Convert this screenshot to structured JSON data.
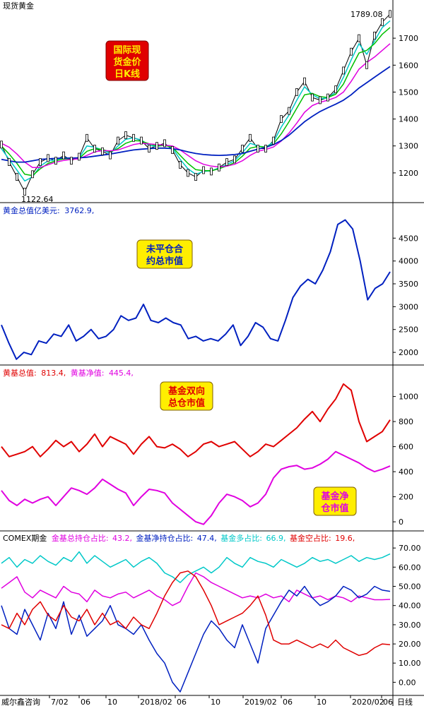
{
  "colors": {
    "background": "#ffffff",
    "axis": "#000000",
    "kline": "#000000",
    "ma1": "#00c8c8",
    "ma2": "#00c000",
    "ma3": "#e000e0",
    "ma4": "#0020c0",
    "open_interest": "#0020c0",
    "fund_gross": "#e00000",
    "fund_net": "#e000e0",
    "cyan": "#00c8c8",
    "label_red_box": "#e00000",
    "label_yellow_box": "#ffee00"
  },
  "chart_data": [
    {
      "type": "line",
      "panel": "spot-gold-kline",
      "title": "现货黄金",
      "note_box": [
        "国际现",
        "货金价",
        "日K线"
      ],
      "ylim": [
        1100,
        1800
      ],
      "y_ticks": [
        1200,
        1300,
        1400,
        1500,
        1600,
        1700
      ],
      "annotations": {
        "high": "1789.08",
        "low": "1122.64"
      },
      "series": [
        {
          "role": "price-close",
          "values": [
            1305,
            1240,
            1185,
            1130,
            1195,
            1240,
            1255,
            1245,
            1265,
            1245,
            1260,
            1330,
            1290,
            1280,
            1265,
            1320,
            1340,
            1330,
            1320,
            1290,
            1300,
            1310,
            1285,
            1230,
            1200,
            1185,
            1210,
            1205,
            1220,
            1240,
            1250,
            1290,
            1330,
            1290,
            1290,
            1320,
            1400,
            1430,
            1500,
            1540,
            1480,
            1470,
            1480,
            1510,
            1580,
            1650,
            1700,
            1600,
            1710,
            1760,
            1790
          ]
        },
        {
          "role": "ma-short",
          "values": [
            1290,
            1250,
            1210,
            1170,
            1185,
            1225,
            1245,
            1248,
            1258,
            1252,
            1256,
            1300,
            1295,
            1285,
            1272,
            1300,
            1325,
            1330,
            1322,
            1302,
            1298,
            1305,
            1292,
            1250,
            1215,
            1195,
            1205,
            1208,
            1218,
            1232,
            1245,
            1275,
            1310,
            1300,
            1295,
            1315,
            1370,
            1415,
            1470,
            1520,
            1490,
            1475,
            1478,
            1500,
            1555,
            1620,
            1680,
            1640,
            1690,
            1740,
            1765
          ]
        },
        {
          "role": "ma-mid",
          "values": [
            1300,
            1270,
            1235,
            1195,
            1190,
            1215,
            1235,
            1245,
            1252,
            1252,
            1254,
            1280,
            1290,
            1287,
            1278,
            1290,
            1310,
            1320,
            1318,
            1308,
            1300,
            1302,
            1295,
            1265,
            1235,
            1212,
            1208,
            1208,
            1215,
            1226,
            1238,
            1262,
            1292,
            1298,
            1296,
            1308,
            1345,
            1390,
            1440,
            1490,
            1495,
            1483,
            1480,
            1492,
            1530,
            1590,
            1645,
            1655,
            1680,
            1715,
            1740
          ]
        },
        {
          "role": "ma-long1",
          "values": [
            1310,
            1295,
            1270,
            1240,
            1220,
            1220,
            1230,
            1240,
            1246,
            1250,
            1252,
            1265,
            1278,
            1283,
            1282,
            1285,
            1295,
            1305,
            1310,
            1308,
            1305,
            1303,
            1300,
            1285,
            1265,
            1245,
            1232,
            1225,
            1222,
            1225,
            1232,
            1245,
            1265,
            1280,
            1287,
            1296,
            1318,
            1348,
            1385,
            1425,
            1450,
            1462,
            1470,
            1480,
            1500,
            1540,
            1585,
            1610,
            1630,
            1655,
            1680
          ]
        },
        {
          "role": "ma-long2",
          "values": [
            1250,
            1245,
            1240,
            1240,
            1245,
            1250,
            1252,
            1254,
            1255,
            1255,
            1256,
            1258,
            1262,
            1266,
            1270,
            1275,
            1280,
            1285,
            1288,
            1290,
            1292,
            1292,
            1290,
            1285,
            1278,
            1272,
            1268,
            1266,
            1265,
            1266,
            1268,
            1272,
            1280,
            1288,
            1295,
            1305,
            1320,
            1340,
            1365,
            1390,
            1410,
            1428,
            1442,
            1455,
            1470,
            1490,
            1515,
            1535,
            1555,
            1575,
            1595
          ]
        }
      ]
    },
    {
      "type": "line",
      "panel": "open-interest-value",
      "title": "未平仓合约总市值",
      "header_label": "黄金总值亿美元:",
      "header_value": "3762.9,",
      "note_box": [
        "未平仓合",
        "约总市值"
      ],
      "ylim": [
        1800,
        5000
      ],
      "y_ticks": [
        2000,
        2500,
        3000,
        3500,
        4000,
        4500
      ],
      "series": [
        {
          "name": "黄金总值亿美元",
          "values": [
            2600,
            2200,
            1850,
            2000,
            1950,
            2250,
            2200,
            2400,
            2350,
            2600,
            2250,
            2350,
            2500,
            2300,
            2350,
            2500,
            2800,
            2700,
            2750,
            3050,
            2700,
            2650,
            2750,
            2650,
            2600,
            2300,
            2350,
            2250,
            2300,
            2250,
            2400,
            2600,
            2150,
            2350,
            2650,
            2550,
            2300,
            2250,
            2700,
            3200,
            3450,
            3600,
            3500,
            3800,
            4200,
            4800,
            4900,
            4700,
            4000,
            3150,
            3400,
            3500,
            3762.9
          ]
        }
      ]
    },
    {
      "type": "line",
      "panel": "fund-position-value",
      "title": "基金双向总仓市值",
      "header_label1": "黄基总值:",
      "header_value1": "813.4,",
      "header_label2": "黄基净值:",
      "header_value2": "445.4,",
      "note_box_gross": [
        "基金双向",
        "总仓市值"
      ],
      "note_box_net": [
        "基金净",
        "仓市值"
      ],
      "ylim": [
        -50,
        1150
      ],
      "y_ticks": [
        0,
        200,
        400,
        600,
        800,
        1000
      ],
      "series": [
        {
          "name": "黄基总值",
          "values": [
            600,
            520,
            540,
            560,
            600,
            520,
            580,
            650,
            600,
            640,
            560,
            620,
            700,
            600,
            680,
            650,
            620,
            540,
            620,
            680,
            600,
            590,
            620,
            580,
            520,
            560,
            620,
            640,
            600,
            620,
            640,
            580,
            520,
            560,
            620,
            600,
            650,
            700,
            750,
            820,
            880,
            800,
            900,
            980,
            1100,
            1050,
            800,
            640,
            680,
            720,
            813.4
          ]
        },
        {
          "name": "黄基净值",
          "values": [
            250,
            170,
            130,
            180,
            150,
            180,
            200,
            130,
            200,
            270,
            250,
            220,
            270,
            340,
            300,
            260,
            230,
            130,
            200,
            260,
            250,
            230,
            150,
            100,
            50,
            0,
            -20,
            50,
            150,
            220,
            200,
            170,
            120,
            150,
            220,
            350,
            420,
            440,
            450,
            420,
            430,
            460,
            500,
            560,
            530,
            500,
            470,
            430,
            400,
            420,
            445.4
          ]
        }
      ]
    },
    {
      "type": "line",
      "panel": "comex-position-ratios",
      "title": "COMEX期金",
      "legend": [
        {
          "label": "金基总持仓占比:",
          "value": "43.2,",
          "color": "#e000e0"
        },
        {
          "label": "金基净持仓占比:",
          "value": "47.4,",
          "color": "#0020c0"
        },
        {
          "label": "基金多占比:",
          "value": "66.9,",
          "color": "#00c8c8"
        },
        {
          "label": "基金空占比:",
          "value": "19.6,",
          "color": "#e00000"
        }
      ],
      "ylim": [
        -5,
        73
      ],
      "y_ticks": [
        "0.00",
        "10.00",
        "20.00",
        "30.00",
        "40.00",
        "50.00",
        "60.00",
        "70.00"
      ],
      "series": [
        {
          "name": "基金多占比",
          "values": [
            62,
            65,
            60,
            64,
            62,
            66,
            63,
            61,
            65,
            63,
            68,
            62,
            66,
            63,
            60,
            62,
            64,
            60,
            63,
            65,
            62,
            57,
            55,
            52,
            56,
            58,
            60,
            57,
            60,
            65,
            62,
            60,
            65,
            63,
            62,
            60,
            64,
            62,
            60,
            62,
            65,
            63,
            64,
            62,
            64,
            66,
            63,
            65,
            64,
            65,
            66.9
          ]
        },
        {
          "name": "金基总持仓占比",
          "values": [
            49,
            52,
            55,
            47,
            44,
            48,
            46,
            44,
            50,
            47,
            46,
            42,
            48,
            45,
            44,
            46,
            47,
            44,
            46,
            48,
            45,
            43,
            40,
            42,
            50,
            57,
            55,
            52,
            50,
            48,
            46,
            44,
            45,
            44,
            46,
            44,
            45,
            42,
            48,
            46,
            44,
            45,
            43,
            45,
            44,
            42,
            45,
            44,
            43,
            43,
            43.2
          ]
        },
        {
          "name": "金基净持仓占比",
          "values": [
            40,
            28,
            25,
            38,
            30,
            22,
            36,
            28,
            42,
            25,
            35,
            24,
            28,
            32,
            40,
            30,
            28,
            25,
            30,
            22,
            15,
            10,
            0,
            -5,
            5,
            15,
            25,
            32,
            28,
            22,
            18,
            30,
            20,
            10,
            28,
            35,
            42,
            48,
            45,
            50,
            44,
            40,
            42,
            45,
            50,
            48,
            44,
            46,
            50,
            48,
            47.4
          ]
        },
        {
          "name": "基金空占比",
          "values": [
            30,
            28,
            36,
            30,
            38,
            42,
            35,
            32,
            40,
            34,
            32,
            38,
            30,
            36,
            30,
            32,
            28,
            34,
            30,
            28,
            36,
            45,
            52,
            57,
            58,
            55,
            48,
            40,
            30,
            32,
            34,
            36,
            40,
            45,
            35,
            22,
            20,
            20,
            22,
            20,
            18,
            20,
            18,
            22,
            18,
            16,
            14,
            15,
            18,
            20,
            19.6
          ]
        }
      ]
    }
  ],
  "x_axis": {
    "left_label": "威尔鑫咨询",
    "ticks": [
      "7/02",
      "06",
      "10",
      "2018/02",
      "06",
      "10",
      "2019/02",
      "06",
      "10",
      "2020/02",
      "06"
    ],
    "right_label": "日线"
  }
}
